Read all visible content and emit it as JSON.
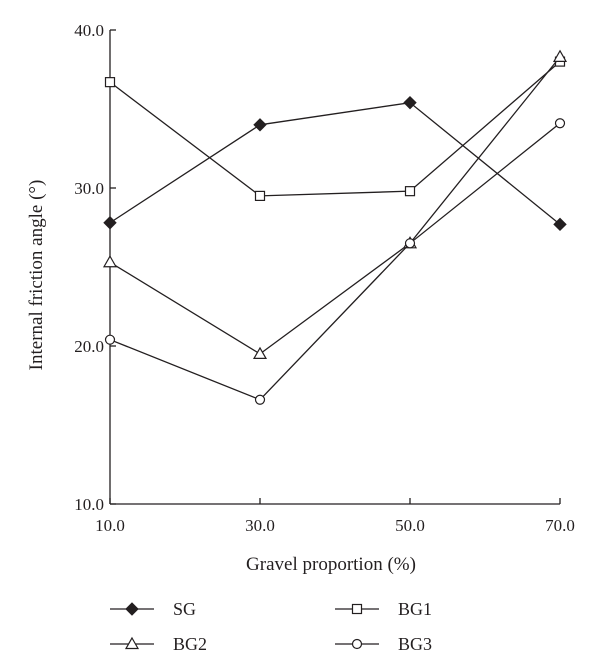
{
  "chart_data": {
    "type": "line",
    "xlabel": "Gravel proportion (%)",
    "ylabel": "Internal friction angle (°)",
    "x": [
      10,
      30,
      50,
      70
    ],
    "x_tick_labels": [
      "10.0",
      "30.0",
      "50.0",
      "70.0"
    ],
    "y_tick_values": [
      10,
      20,
      30,
      40
    ],
    "y_tick_labels": [
      "10.0",
      "20.0",
      "30.0",
      "40.0"
    ],
    "xlim": [
      10,
      70
    ],
    "ylim": [
      10,
      40
    ],
    "grid": false,
    "legend_position": "bottom",
    "series": [
      {
        "name": "SG",
        "marker": "diamond-filled",
        "values": [
          27.8,
          34.0,
          35.4,
          27.7
        ]
      },
      {
        "name": "BG1",
        "marker": "square-open",
        "values": [
          36.7,
          29.5,
          29.8,
          38.0
        ]
      },
      {
        "name": "BG2",
        "marker": "triangle-open",
        "values": [
          25.3,
          19.5,
          26.5,
          38.3
        ]
      },
      {
        "name": "BG3",
        "marker": "circle-open",
        "values": [
          20.4,
          16.6,
          26.5,
          34.1
        ]
      }
    ]
  }
}
